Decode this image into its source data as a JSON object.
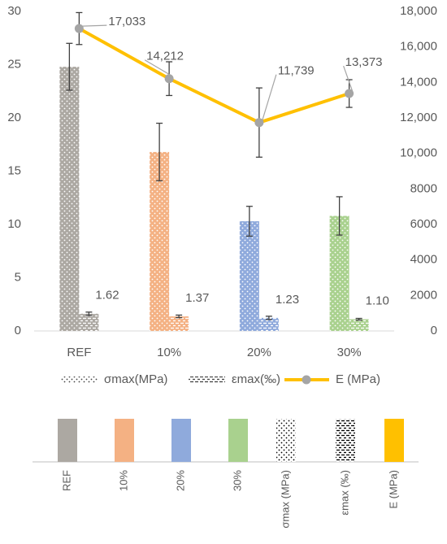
{
  "chart_data": {
    "type": "bar_line",
    "categories": [
      "REF",
      "10%",
      "20%",
      "30%"
    ],
    "category_colors": [
      "#aca8a2",
      "#f4b183",
      "#8faadc",
      "#a9d18e"
    ],
    "ylim": [
      0,
      30
    ],
    "yticks": [
      0,
      5,
      10,
      15,
      20,
      25,
      30
    ],
    "y2lim": [
      0,
      18000
    ],
    "y2ticks": [
      0,
      2000,
      4000,
      6000,
      8000,
      {
        "value": 10000,
        "label": "10,000"
      },
      {
        "value": 12000,
        "label": "12,000"
      },
      {
        "value": 14000,
        "label": "14,000"
      },
      {
        "value": 16000,
        "label": "16,000"
      },
      {
        "value": 18000,
        "label": "18,000"
      }
    ],
    "series": [
      {
        "name": "σmax(MPa)",
        "pattern": "dots",
        "values": [
          24.8,
          16.8,
          10.3,
          10.8
        ],
        "error": [
          2.2,
          2.7,
          1.4,
          1.8
        ]
      },
      {
        "name": "εmax(‰)",
        "pattern": "dashes",
        "values": [
          1.62,
          1.37,
          1.23,
          1.1
        ],
        "value_labels": [
          "1.62",
          "1.37",
          "1.23",
          "1.10"
        ],
        "error": [
          0.15,
          0.12,
          0.15,
          0.08
        ]
      },
      {
        "name": "E (MPa)",
        "axis": "y2",
        "type": "line",
        "color": "#ffc000",
        "marker_color": "#a5a5a5",
        "values": [
          17033,
          14212,
          11739,
          13373
        ],
        "value_labels": [
          "17,033",
          "14,212",
          "11,739",
          "13,373"
        ],
        "error": [
          900,
          950,
          1950,
          780
        ]
      }
    ],
    "color_key": [
      {
        "label": "REF",
        "color": "#aca8a2"
      },
      {
        "label": "10%",
        "color": "#f4b183"
      },
      {
        "label": "20%",
        "color": "#8faadc"
      },
      {
        "label": "30%",
        "color": "#a9d18e"
      },
      {
        "label": "σmax (MPa)",
        "pattern": "dots"
      },
      {
        "label": "εmax (‰)",
        "pattern": "dashes"
      },
      {
        "label": "E (MPa)",
        "color": "#ffc000"
      }
    ]
  }
}
